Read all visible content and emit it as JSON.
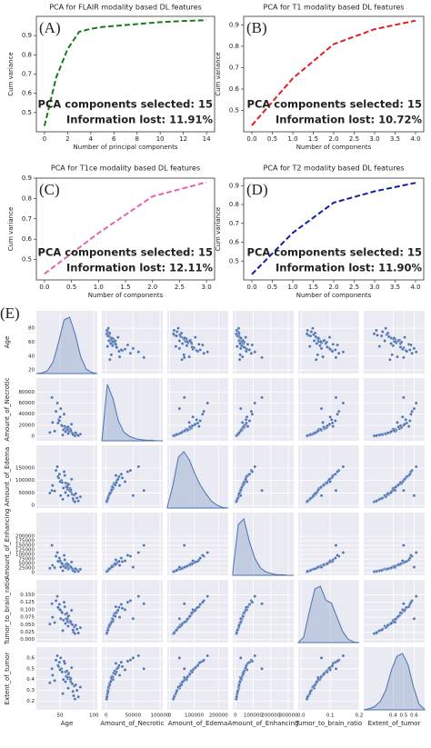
{
  "chart_data": [
    {
      "type": "line",
      "panel_label": "(A)",
      "title": "PCA for FLAIR modality based DL features",
      "x_label": "Number of principal components",
      "y_label": "Cum variance",
      "color": "#1a7a1a",
      "x": [
        0,
        1,
        2,
        3,
        4,
        5,
        6,
        7,
        8,
        9,
        10,
        11,
        12,
        13,
        14
      ],
      "values": [
        0.43,
        0.68,
        0.83,
        0.92,
        0.935,
        0.945,
        0.95,
        0.955,
        0.96,
        0.965,
        0.97,
        0.973,
        0.976,
        0.978,
        0.98
      ],
      "xlim": [
        -0.7,
        14.7
      ],
      "ylim": [
        0.4,
        1.0
      ],
      "xticks": [
        0,
        2,
        4,
        6,
        8,
        10,
        12,
        14
      ],
      "yticks": [
        0.5,
        0.6,
        0.7,
        0.8,
        0.9
      ],
      "annotations": [
        "PCA components selected: 15",
        "Information lost: 11.91%"
      ]
    },
    {
      "type": "line",
      "panel_label": "(B)",
      "title": "PCA for T1 modality based DL features",
      "x_label": "Number of components",
      "y_label": "Cum variance",
      "color": "#e02020",
      "x": [
        0,
        1,
        2,
        3,
        4
      ],
      "values": [
        0.43,
        0.65,
        0.81,
        0.88,
        0.92
      ],
      "xlim": [
        -0.2,
        4.2
      ],
      "ylim": [
        0.4,
        0.94
      ],
      "xticks": [
        {
          "value": 0,
          "label": "0.0"
        },
        0.5,
        {
          "value": 1,
          "label": "1.0"
        },
        1.5,
        {
          "value": 2,
          "label": "2.0"
        },
        2.5,
        {
          "value": 3,
          "label": "3.0"
        },
        3.5,
        {
          "value": 4,
          "label": "4.0"
        }
      ],
      "yticks": [
        0.5,
        0.6,
        0.7,
        0.8,
        0.9
      ],
      "annotations": [
        "PCA components selected: 15",
        "Information lost: 10.72%"
      ]
    },
    {
      "type": "line",
      "panel_label": "(C)",
      "title": "PCA for T1ce modality based DL features",
      "x_label": "Number of components",
      "y_label": "Cum variance",
      "color": "#e066b0",
      "x": [
        0,
        1,
        2,
        3
      ],
      "values": [
        0.43,
        0.63,
        0.81,
        0.88
      ],
      "xlim": [
        -0.15,
        3.15
      ],
      "ylim": [
        0.4,
        0.9
      ],
      "xticks": [
        {
          "value": 0,
          "label": "0.0"
        },
        0.5,
        {
          "value": 1,
          "label": "1.0"
        },
        1.5,
        {
          "value": 2,
          "label": "2.0"
        },
        2.5,
        {
          "value": 3,
          "label": "3.0"
        }
      ],
      "yticks": [
        0.5,
        0.6,
        0.7,
        0.8,
        0.9
      ],
      "annotations": [
        "PCA components selected: 15",
        "Information lost: 12.11%"
      ]
    },
    {
      "type": "line",
      "panel_label": "(D)",
      "title": "PCA for T2 modality based DL features",
      "x_label": "Number of components",
      "y_label": "Cum variance",
      "color": "#1020a0",
      "x": [
        0,
        1,
        2,
        3,
        4
      ],
      "values": [
        0.43,
        0.65,
        0.81,
        0.87,
        0.915
      ],
      "xlim": [
        -0.2,
        4.2
      ],
      "ylim": [
        0.4,
        0.94
      ],
      "xticks": [
        {
          "value": 0,
          "label": "0.0"
        },
        0.5,
        {
          "value": 1,
          "label": "1.0"
        },
        1.5,
        {
          "value": 2,
          "label": "2.0"
        },
        2.5,
        {
          "value": 3,
          "label": "3.0"
        },
        3.5,
        {
          "value": 4,
          "label": "4.0"
        }
      ],
      "yticks": [
        0.5,
        0.6,
        0.7,
        0.8,
        0.9
      ],
      "annotations": [
        "PCA components selected: 15",
        "Information lost: 11.90%"
      ]
    },
    {
      "type": "pairplot",
      "panel_label": "(E)",
      "color": "#4c72b0",
      "variables": [
        {
          "name": "Age",
          "lim": [
            15,
            105
          ],
          "xticks": [
            50,
            100
          ],
          "yticks": [
            20,
            40,
            60,
            80
          ],
          "values": [
            62,
            55,
            70,
            48,
            66,
            58,
            75,
            44,
            61,
            52,
            68,
            39,
            72,
            57,
            64,
            50,
            80,
            46,
            59,
            63,
            35,
            67,
            54,
            60,
            71,
            49,
            65,
            42,
            77,
            56,
            61,
            53,
            69,
            47,
            58,
            62,
            38,
            73,
            51,
            66
          ],
          "kde": [
            0,
            0.01,
            0.05,
            0.2,
            0.55,
            0.95,
            1,
            0.7,
            0.3,
            0.08,
            0.02,
            0
          ]
        },
        {
          "name": "Amount_of_Necrotic",
          "lim": [
            -8000,
            105000
          ],
          "xticks": [
            0,
            50000,
            100000
          ],
          "yticks": [
            0,
            20000,
            40000,
            60000,
            80000
          ],
          "values": [
            5000,
            12000,
            2000,
            30000,
            8000,
            15000,
            3000,
            45000,
            10000,
            20000,
            6000,
            25000,
            1000,
            18000,
            9000,
            35000,
            4000,
            60000,
            11000,
            14000,
            7000,
            22000,
            2500,
            16000,
            5500,
            28000,
            13000,
            9500,
            1500,
            40000,
            12500,
            19000,
            3500,
            24000,
            8500,
            17000,
            70000,
            6500,
            50000,
            10500
          ],
          "kde": [
            0,
            1,
            0.75,
            0.35,
            0.15,
            0.08,
            0.04,
            0.02,
            0.01,
            0.01,
            0,
            0
          ]
        },
        {
          "name": "Amount_of_Edema",
          "lim": [
            -10000,
            240000
          ],
          "xticks": [
            0,
            100000,
            200000
          ],
          "yticks": [
            0,
            50000,
            100000,
            150000
          ],
          "values": [
            40000,
            70000,
            20000,
            110000,
            55000,
            90000,
            30000,
            140000,
            65000,
            100000,
            45000,
            80000,
            15000,
            120000,
            60000,
            95000,
            35000,
            155000,
            75000,
            85000,
            50000,
            105000,
            25000,
            88000,
            42000,
            125000,
            68000,
            58000,
            18000,
            135000,
            72000,
            92000,
            28000,
            115000,
            52000,
            82000,
            60000,
            48000,
            40000,
            62000
          ],
          "kde": [
            0.02,
            0.4,
            0.9,
            1,
            0.85,
            0.6,
            0.4,
            0.25,
            0.12,
            0.05,
            0.01,
            0
          ]
        },
        {
          "name": "Amount_of_Enhancing",
          "lim": [
            -15000,
            330000
          ],
          "xticks": [
            0,
            100000,
            200000,
            300000
          ],
          "yticks": [
            0,
            25000,
            50000,
            75000,
            100000,
            125000,
            150000,
            175000,
            200000
          ],
          "values": [
            20000,
            35000,
            8000,
            60000,
            25000,
            45000,
            15000,
            90000,
            30000,
            55000,
            22000,
            40000,
            5000,
            70000,
            28000,
            65000,
            18000,
            110000,
            38000,
            42000,
            24000,
            58000,
            10000,
            50000,
            19000,
            80000,
            33000,
            27000,
            7000,
            95000,
            36000,
            48000,
            12000,
            62000,
            26000,
            44000,
            150000,
            21000,
            30000,
            31000
          ],
          "kde": [
            0.05,
            0.9,
            1,
            0.6,
            0.3,
            0.13,
            0.06,
            0.03,
            0.01,
            0.01,
            0,
            0
          ]
        },
        {
          "name": "Tumor_to_brain_ratio",
          "lim": [
            -0.01,
            0.2
          ],
          "xticks": [
            {
              "value": 0,
              "label": "0.0"
            },
            0.1,
            0.2
          ],
          "yticks": [
            {
              "value": 0,
              "label": "0.000"
            },
            0.025,
            {
              "value": 0.05,
              "label": "0.050"
            },
            0.075,
            {
              "value": 0.1,
              "label": "0.100"
            },
            0.125,
            {
              "value": 0.15,
              "label": "0.150"
            }
          ],
          "values": [
            0.045,
            0.065,
            0.025,
            0.105,
            0.055,
            0.085,
            0.035,
            0.13,
            0.06,
            0.095,
            0.05,
            0.075,
            0.02,
            0.11,
            0.058,
            0.1,
            0.04,
            0.145,
            0.07,
            0.08,
            0.052,
            0.098,
            0.03,
            0.088,
            0.043,
            0.118,
            0.062,
            0.057,
            0.022,
            0.125,
            0.068,
            0.09,
            0.032,
            0.108,
            0.054,
            0.078,
            0.12,
            0.048,
            0.07,
            0.059
          ],
          "kde": [
            0,
            0.1,
            0.55,
            0.95,
            1,
            0.75,
            0.7,
            0.45,
            0.2,
            0.06,
            0.01,
            0
          ]
        },
        {
          "name": "Extent_of_tumor",
          "lim": [
            0.12,
            0.7
          ],
          "xticks": [
            0.4,
            0.5,
            0.6
          ],
          "yticks": [
            0.2,
            0.3,
            0.4,
            0.5,
            0.6
          ],
          "values": [
            0.32,
            0.4,
            0.25,
            0.52,
            0.38,
            0.47,
            0.3,
            0.58,
            0.41,
            0.5,
            0.36,
            0.44,
            0.22,
            0.55,
            0.42,
            0.49,
            0.33,
            0.62,
            0.43,
            0.46,
            0.37,
            0.51,
            0.27,
            0.48,
            0.34,
            0.56,
            0.4,
            0.39,
            0.24,
            0.57,
            0.42,
            0.47,
            0.29,
            0.53,
            0.38,
            0.45,
            0.5,
            0.35,
            0.6,
            0.41
          ],
          "kde": [
            0,
            0.02,
            0.06,
            0.15,
            0.35,
            0.7,
            0.95,
            1,
            0.8,
            0.4,
            0.1,
            0.01
          ]
        }
      ]
    }
  ]
}
